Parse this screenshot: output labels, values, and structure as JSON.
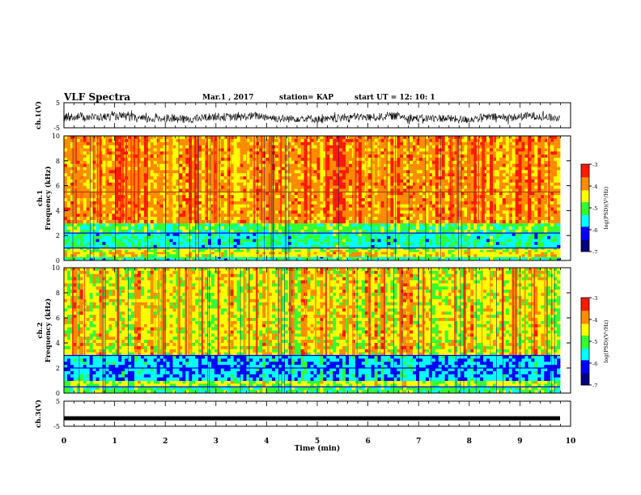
{
  "header": {
    "title": "VLF Spectra",
    "date": "Mar.1  , 2017",
    "station": "station= KAP",
    "start_ut": "start  UT =   12: 10: 1"
  },
  "colors": {
    "red": "#ff1a00",
    "orange": "#ff8c00",
    "yellow": "#ffff00",
    "green": "#33ff33",
    "cyan": "#00ffff",
    "blue": "#0000ff",
    "navy": "#000080"
  },
  "chart_data": [
    {
      "type": "line",
      "panel": "ch1-waveform",
      "ylabel": "ch.1(V)",
      "ylim": [
        -5,
        5
      ],
      "yticks": [
        "5",
        "-5"
      ],
      "xlim": [
        0,
        10
      ],
      "series": [
        {
          "description_level": "noise around -1 V with amplitude ~1.5 V",
          "center": -1.0,
          "amplitude": 1.6
        }
      ]
    },
    {
      "type": "heatmap",
      "panel": "ch1-spectrogram",
      "ylabel": "ch.1\nFrequency  (kHz)",
      "ylim": [
        0,
        10
      ],
      "yticks": [
        "0",
        "2",
        "4",
        "6",
        "8",
        "10"
      ],
      "xlim": [
        0,
        10
      ],
      "colorbar": {
        "label": "log(PSD)(V²/Hz)",
        "range": [
          -7,
          -3
        ],
        "ticks": [
          "-3",
          "-4",
          "-5",
          "-6",
          "-7"
        ]
      },
      "bands_khz": [
        {
          "from": 0.0,
          "to": 0.3,
          "level": -5.3
        },
        {
          "from": 0.3,
          "to": 0.7,
          "level": -4.3
        },
        {
          "from": 0.7,
          "to": 1.0,
          "level": -4.6
        },
        {
          "from": 1.0,
          "to": 2.2,
          "level": -5.4
        },
        {
          "from": 2.2,
          "to": 3.0,
          "level": -5.0
        },
        {
          "from": 3.0,
          "to": 10.0,
          "level": -3.9
        }
      ],
      "lines_khz": [
        1.0,
        2.2,
        5.5
      ]
    },
    {
      "type": "heatmap",
      "panel": "ch2-spectrogram",
      "ylabel": "ch.2\nFrequency  (kHz)",
      "ylim": [
        0,
        10
      ],
      "yticks": [
        "0",
        "2",
        "4",
        "6",
        "8",
        "10"
      ],
      "xlim": [
        0,
        10
      ],
      "colorbar": {
        "label": "log(PSD)(V²/Hz)",
        "range": [
          -7,
          -3
        ],
        "ticks": [
          "-3",
          "-4",
          "-5",
          "-6",
          "-7"
        ]
      },
      "bands_khz": [
        {
          "from": 0.0,
          "to": 0.5,
          "level": -5.1
        },
        {
          "from": 0.5,
          "to": 1.0,
          "level": -4.6
        },
        {
          "from": 1.0,
          "to": 3.0,
          "level": -5.7
        },
        {
          "from": 3.0,
          "to": 10.0,
          "level": -4.4
        }
      ],
      "lines_khz": [
        0.5,
        2.0,
        3.0
      ]
    },
    {
      "type": "line",
      "panel": "ch3-waveform",
      "ylabel": "ch.3(V)",
      "ylim": [
        -5,
        5
      ],
      "yticks": [
        "5",
        "-5"
      ],
      "xlim": [
        0,
        10
      ],
      "series": [
        {
          "constant": -1.8
        }
      ]
    }
  ],
  "xaxis": {
    "label": "Time  (min)",
    "ticks": [
      "0",
      "1",
      "2",
      "3",
      "4",
      "5",
      "6",
      "7",
      "8",
      "9",
      "10"
    ]
  }
}
